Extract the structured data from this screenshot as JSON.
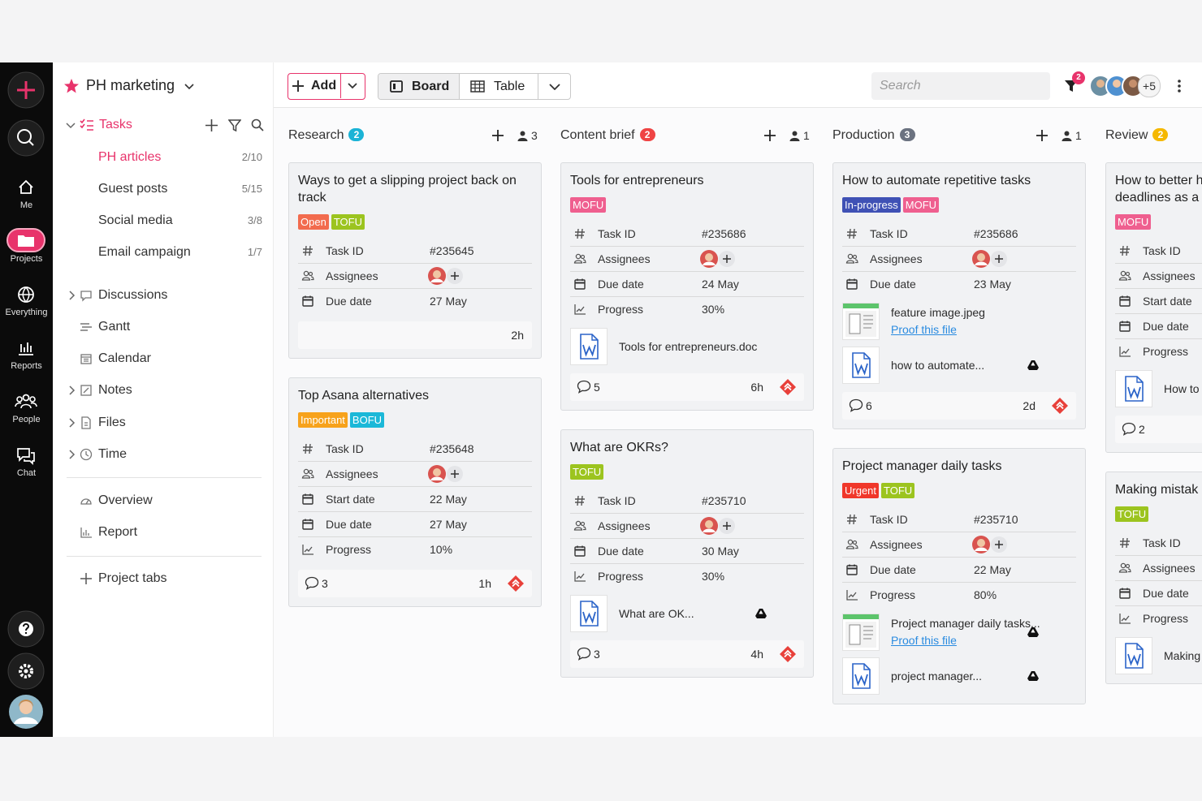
{
  "nav": {
    "items": [
      "Me",
      "Projects",
      "Everything",
      "Reports",
      "People",
      "Chat"
    ]
  },
  "sidebar": {
    "project": "PH marketing",
    "tasks": "Tasks",
    "lists": [
      {
        "name": "PH articles",
        "count": "2/10"
      },
      {
        "name": "Guest posts",
        "count": "5/15"
      },
      {
        "name": "Social media",
        "count": "3/8"
      },
      {
        "name": "Email campaign",
        "count": "1/7"
      }
    ],
    "sections": [
      "Discussions",
      "Gantt",
      "Calendar",
      "Notes",
      "Files",
      "Time"
    ],
    "views": [
      "Overview",
      "Report"
    ],
    "project_tabs": "Project tabs"
  },
  "toolbar": {
    "add": "Add",
    "board": "Board",
    "table": "Table",
    "search": "Search",
    "filter_badge": 2,
    "more_members": "+5"
  },
  "columns": [
    {
      "name": "Research",
      "count": 2,
      "badge_color": "#1bb3d6",
      "assignees": 3,
      "cards": [
        {
          "title": "Ways to get a slipping project back on track",
          "tags": [
            {
              "text": "Open",
              "color": "#f26b4e"
            },
            {
              "text": "TOFU",
              "color": "#9cc41f"
            }
          ],
          "fields": [
            {
              "label": "Task ID",
              "value": "#235645"
            },
            {
              "label": "Assignees"
            },
            {
              "label": "Due date",
              "value": "27 May"
            }
          ],
          "footer": {
            "time": "2h"
          }
        },
        {
          "title": "Top Asana alternatives",
          "tags": [
            {
              "text": "Important",
              "color": "#f7a21b"
            },
            {
              "text": "BOFU",
              "color": "#1bb8d8"
            }
          ],
          "fields": [
            {
              "label": "Task ID",
              "value": "#235648"
            },
            {
              "label": "Assignees"
            },
            {
              "label": "Start date",
              "value": "22 May"
            },
            {
              "label": "Due date",
              "value": "27 May"
            },
            {
              "label": "Progress",
              "value": "10%"
            }
          ],
          "footer": {
            "comments": 3,
            "time": "1h"
          }
        }
      ]
    },
    {
      "name": "Content brief",
      "count": 2,
      "badge_color": "#ef4444",
      "assignees": 1,
      "cards": [
        {
          "title": "Tools for entrepreneurs",
          "tags": [
            {
              "text": "MOFU",
              "color": "#ef5f8f"
            }
          ],
          "fields": [
            {
              "label": "Task ID",
              "value": "#235686"
            },
            {
              "label": "Assignees"
            },
            {
              "label": "Due date",
              "value": "24 May"
            },
            {
              "label": "Progress",
              "value": "30%"
            }
          ],
          "files": [
            {
              "name": "Tools for entrepreneurs.doc"
            }
          ],
          "footer": {
            "comments": 5,
            "time": "6h"
          }
        },
        {
          "title": "What are OKRs?",
          "tags": [
            {
              "text": "TOFU",
              "color": "#9cc41f"
            }
          ],
          "fields": [
            {
              "label": "Task ID",
              "value": "#235710"
            },
            {
              "label": "Assignees"
            },
            {
              "label": "Due date",
              "value": "30 May"
            },
            {
              "label": "Progress",
              "value": "30%"
            }
          ],
          "files": [
            {
              "name": "What are OK..."
            }
          ],
          "footer": {
            "comments": 3,
            "time": "4h"
          }
        }
      ]
    },
    {
      "name": "Production",
      "count": 3,
      "badge_color": "#6b7280",
      "assignees": 1,
      "cards": [
        {
          "title": "How to automate repetitive tasks",
          "tags": [
            {
              "text": "In-progress",
              "color": "#3f51b5"
            },
            {
              "text": "MOFU",
              "color": "#ef5f8f"
            }
          ],
          "fields": [
            {
              "label": "Task ID",
              "value": "#235686"
            },
            {
              "label": "Assignees"
            },
            {
              "label": "Due date",
              "value": "23 May"
            }
          ],
          "files": [
            {
              "name": "feature image.jpeg",
              "link": "Proof this file"
            },
            {
              "name": "how to automate..."
            }
          ],
          "footer": {
            "comments": 6,
            "time": "2d"
          }
        },
        {
          "title": "Project manager daily tasks",
          "tags": [
            {
              "text": "Urgent",
              "color": "#f0372a"
            },
            {
              "text": "TOFU",
              "color": "#9cc41f"
            }
          ],
          "fields": [
            {
              "label": "Task ID",
              "value": "#235710"
            },
            {
              "label": "Assignees"
            },
            {
              "label": "Due date",
              "value": "22 May"
            },
            {
              "label": "Progress",
              "value": "80%"
            }
          ],
          "files": [
            {
              "name": "Project manager daily tasks...",
              "link": "Proof this file"
            },
            {
              "name": "project manager..."
            }
          ]
        }
      ]
    },
    {
      "name": "Review",
      "count": 2,
      "badge_color": "#f5b800",
      "cards": [
        {
          "title": "How to better h\ndeadlines as a",
          "tags": [
            {
              "text": "MOFU",
              "color": "#ef5f8f"
            }
          ],
          "fields": [
            {
              "label": "Task ID"
            },
            {
              "label": "Assignees"
            },
            {
              "label": "Start date"
            },
            {
              "label": "Due date"
            },
            {
              "label": "Progress"
            }
          ],
          "files": [
            {
              "name": "How to"
            }
          ],
          "footer": {
            "comments": 2
          }
        },
        {
          "title": "Making mistak",
          "tags": [
            {
              "text": "TOFU",
              "color": "#9cc41f"
            }
          ],
          "fields": [
            {
              "label": "Task ID"
            },
            {
              "label": "Assignees"
            },
            {
              "label": "Due date"
            },
            {
              "label": "Progress"
            }
          ],
          "files": [
            {
              "name": "Making"
            }
          ]
        }
      ]
    }
  ]
}
